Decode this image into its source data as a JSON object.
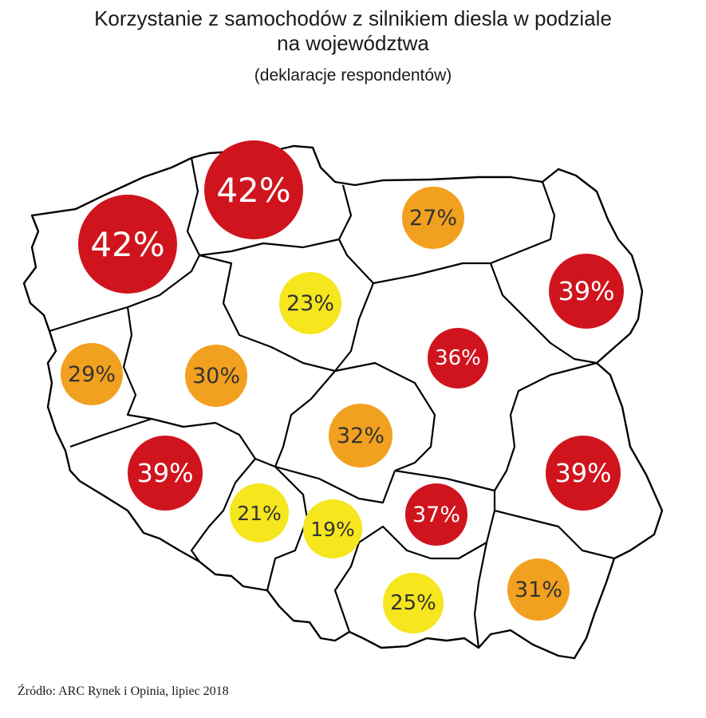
{
  "title_line1": "Korzystanie z samochodów z silnikiem diesla w podziale",
  "title_line2": "na województwa",
  "subtitle": "(deklaracje respondentów)",
  "source": "Źródło: ARC Rynek i Opinia, lipiec 2018",
  "colors": {
    "red": "#d0141e",
    "orange": "#f2a01f",
    "yellow": "#f5e61e",
    "outline": "#000000"
  },
  "regions": [
    {
      "id": "zachodniopomorskie",
      "label": "42%",
      "value": 42,
      "color": "red"
    },
    {
      "id": "pomorskie",
      "label": "42%",
      "value": 42,
      "color": "red"
    },
    {
      "id": "warminsko-mazurskie",
      "label": "27%",
      "value": 27,
      "color": "orange"
    },
    {
      "id": "podlaskie",
      "label": "39%",
      "value": 39,
      "color": "red"
    },
    {
      "id": "kujawsko-pomorskie",
      "label": "23%",
      "value": 23,
      "color": "yellow"
    },
    {
      "id": "mazowieckie",
      "label": "36%",
      "value": 36,
      "color": "red"
    },
    {
      "id": "lubuskie",
      "label": "29%",
      "value": 29,
      "color": "orange"
    },
    {
      "id": "wielkopolskie",
      "label": "30%",
      "value": 30,
      "color": "orange"
    },
    {
      "id": "lodzkie",
      "label": "32%",
      "value": 32,
      "color": "orange"
    },
    {
      "id": "dolnoslaskie",
      "label": "39%",
      "value": 39,
      "color": "red"
    },
    {
      "id": "lubelskie",
      "label": "39%",
      "value": 39,
      "color": "red"
    },
    {
      "id": "opolskie",
      "label": "21%",
      "value": 21,
      "color": "yellow"
    },
    {
      "id": "slaskie",
      "label": "19%",
      "value": 19,
      "color": "yellow"
    },
    {
      "id": "swietokrzyskie",
      "label": "37%",
      "value": 37,
      "color": "red"
    },
    {
      "id": "malopolskie",
      "label": "25%",
      "value": 25,
      "color": "yellow"
    },
    {
      "id": "podkarpackie",
      "label": "31%",
      "value": 31,
      "color": "orange"
    }
  ]
}
